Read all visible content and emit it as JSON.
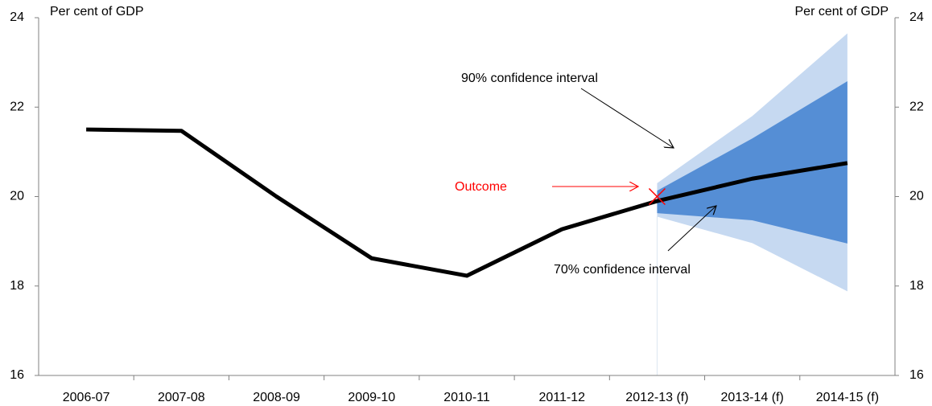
{
  "chart_data": {
    "type": "fan",
    "y_label": "Per cent of GDP",
    "y2_label": "Per cent of GDP",
    "categories": [
      "2006-07",
      "2007-08",
      "2008-09",
      "2009-10",
      "2010-11",
      "2011-12",
      "2012-13 (f)",
      "2013-14 (f)",
      "2014-15 (f)"
    ],
    "series": [
      {
        "color": "#000000",
        "values": [
          21.5,
          21.47,
          20.0,
          18.62,
          18.23,
          19.27,
          19.9,
          20.4,
          20.75
        ]
      }
    ],
    "bands": [
      {
        "color": "#c6d9f1",
        "lower": [
          null,
          null,
          null,
          null,
          null,
          null,
          19.55,
          18.96,
          17.88
        ],
        "upper": [
          null,
          null,
          null,
          null,
          null,
          null,
          20.3,
          21.8,
          23.65
        ]
      },
      {
        "color": "#558ed5",
        "lower": [
          null,
          null,
          null,
          null,
          null,
          null,
          19.63,
          19.47,
          18.95
        ],
        "upper": [
          null,
          null,
          null,
          null,
          null,
          null,
          20.13,
          21.3,
          22.58
        ]
      }
    ],
    "outcome": {
      "label": "Outcome",
      "category": "2012-13 (f)",
      "value": 20.0,
      "color": "#ff0000"
    },
    "annotations": [
      "90% confidence interval",
      "70% confidence interval"
    ],
    "ylim": [
      16,
      24
    ],
    "yticks": [
      16,
      18,
      20,
      22,
      24
    ],
    "y2lim": [
      16,
      24
    ],
    "y2ticks": [
      16,
      18,
      20,
      22,
      24
    ]
  }
}
